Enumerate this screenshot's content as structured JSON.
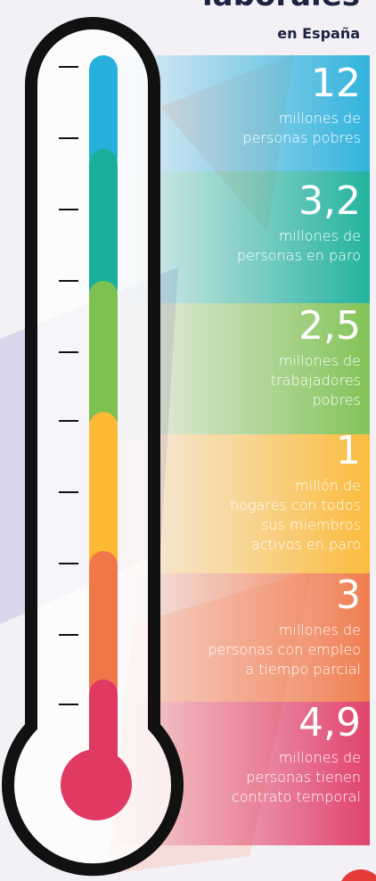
{
  "header": {
    "title": "laborales",
    "subtitle": "en España"
  },
  "items": [
    {
      "value": "12",
      "color": "#27b0dc",
      "lines": [
        "millones de",
        "personas pobres"
      ]
    },
    {
      "value": "3,2",
      "color": "#19b09a",
      "lines": [
        "millones de",
        "personas en paro"
      ]
    },
    {
      "value": "2,5",
      "color": "#7dc150",
      "lines": [
        "millones de",
        "trabajadores",
        "pobres"
      ]
    },
    {
      "value": "1",
      "color": "#fbb934",
      "lines": [
        "millón de",
        "hogares con todos",
        "sus miembros",
        "activos en paro"
      ]
    },
    {
      "value": "3",
      "color": "#f07848",
      "lines": [
        "millones de",
        "personas con empleo",
        "a tiempo parcial"
      ]
    },
    {
      "value": "4,9",
      "color": "#e03a63",
      "lines": [
        "millones de",
        "personas tienen",
        "contrato temporal"
      ]
    }
  ]
}
